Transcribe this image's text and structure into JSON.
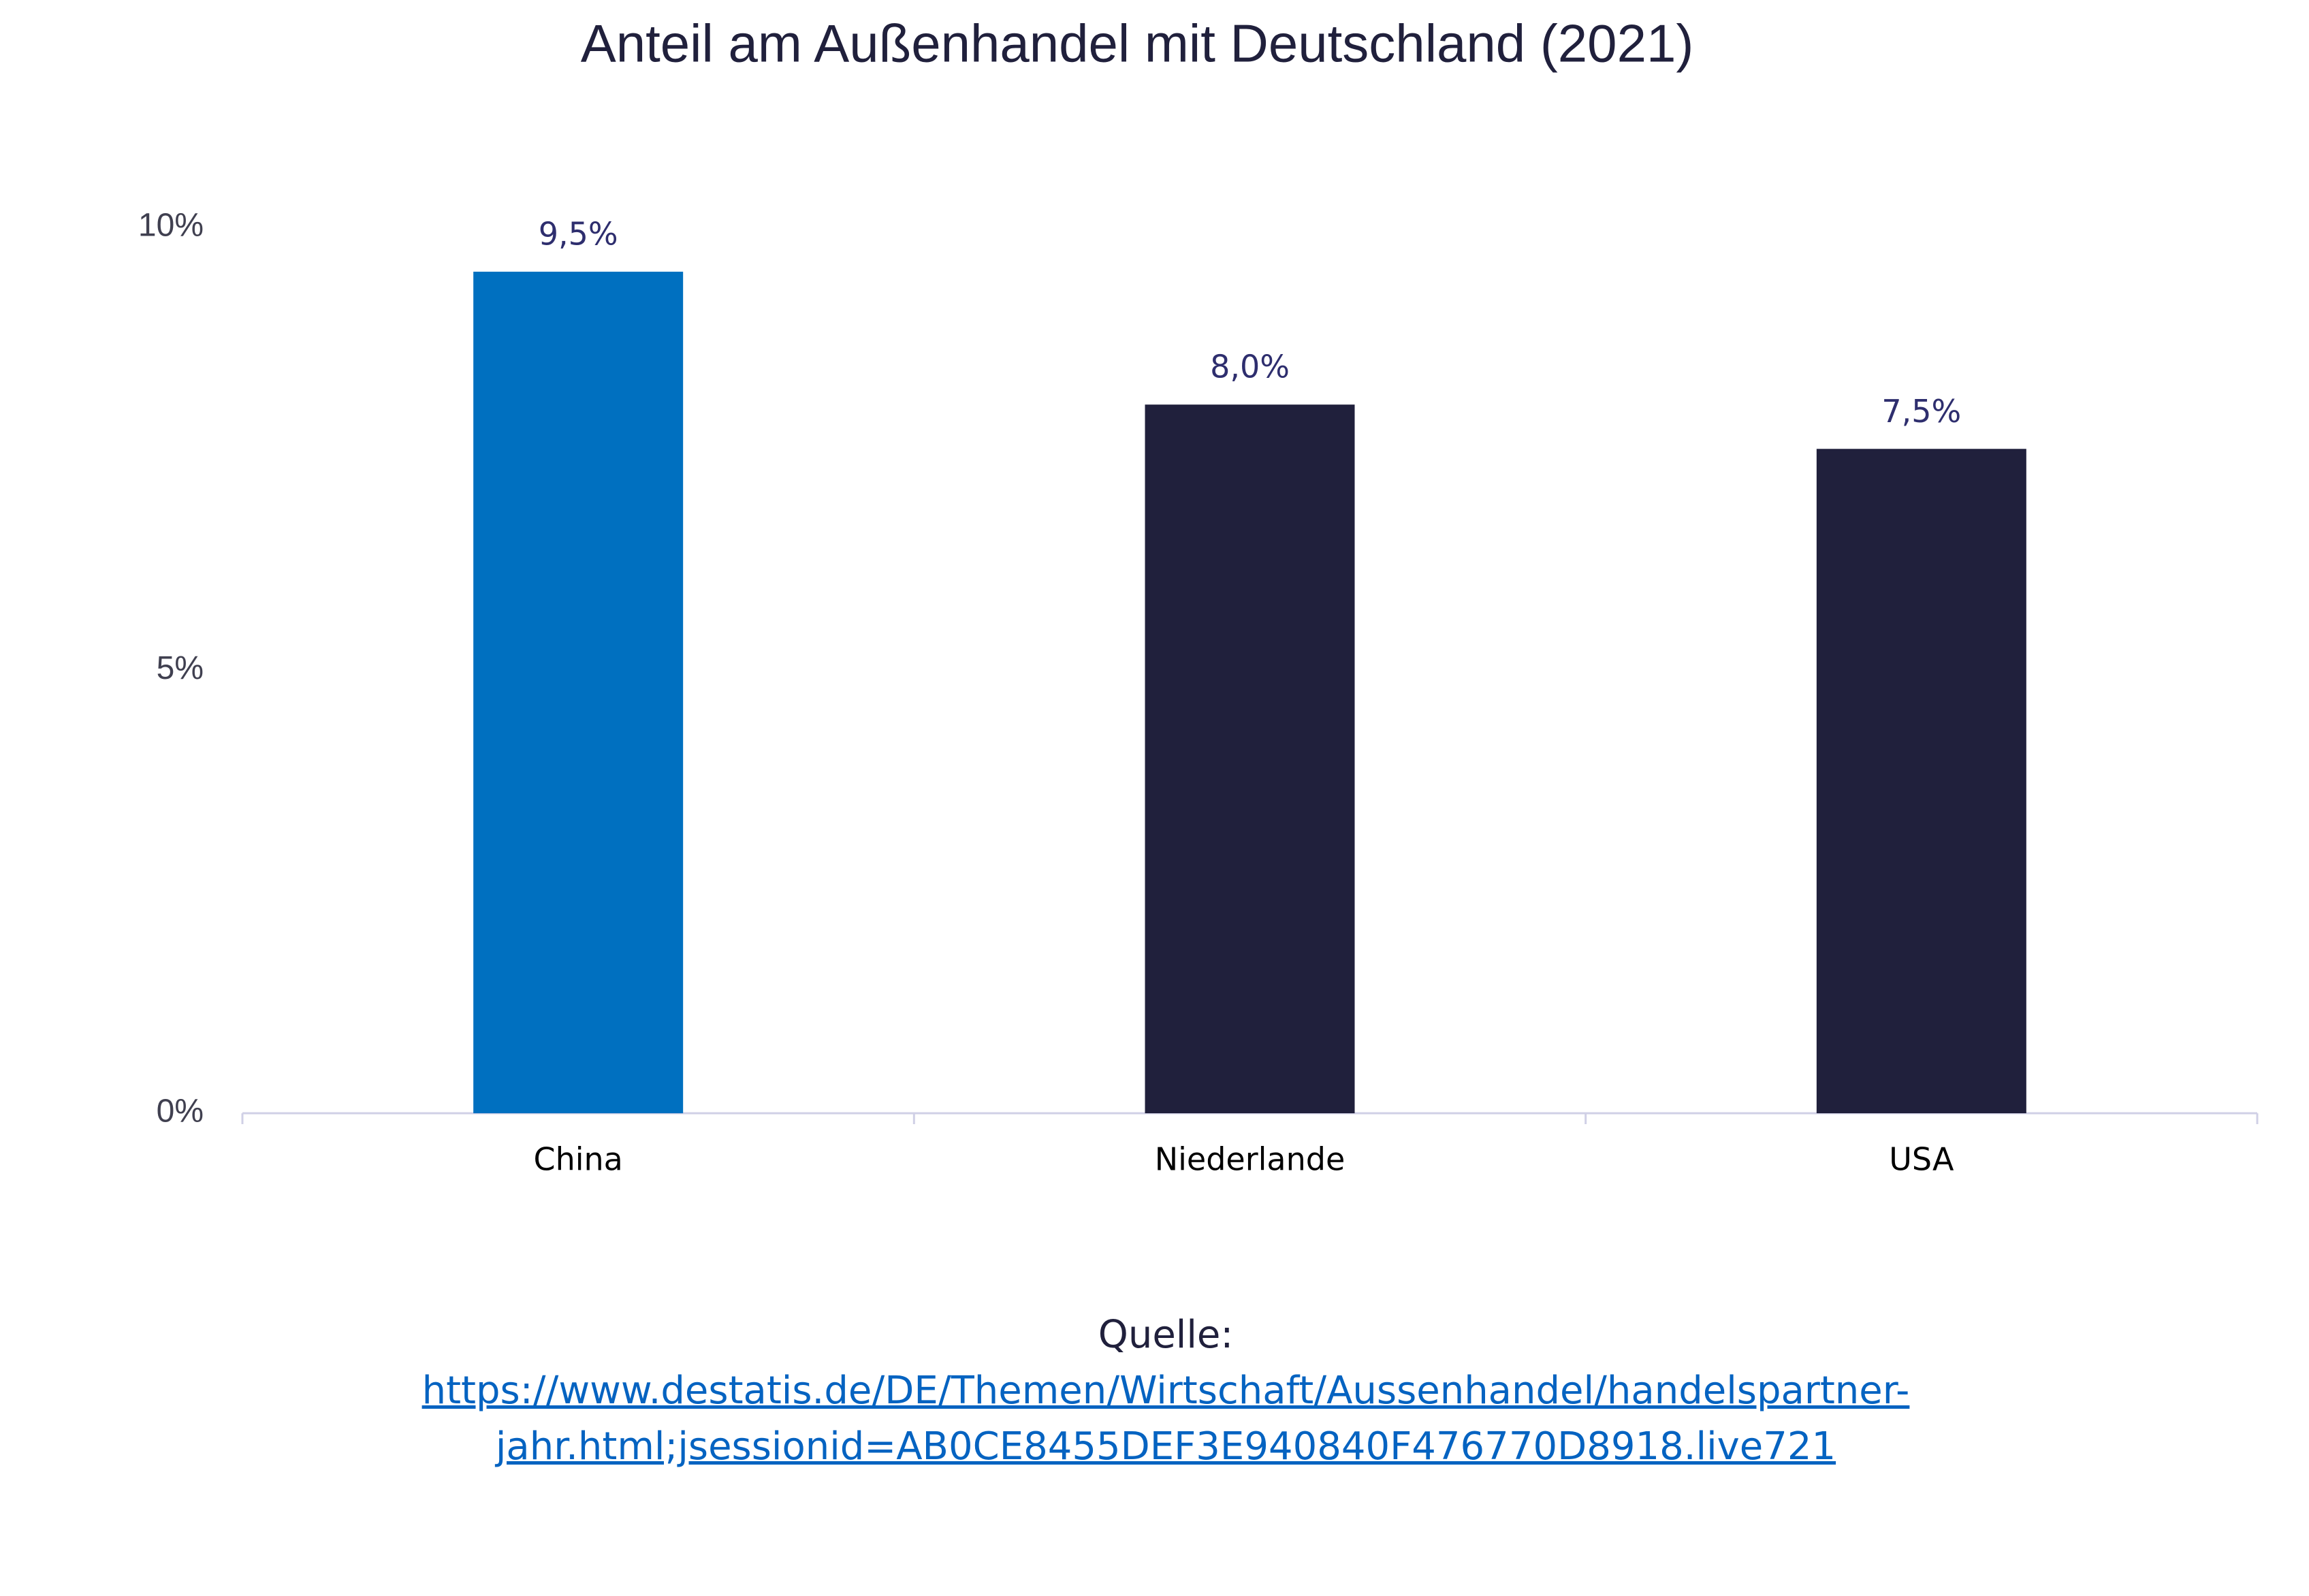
{
  "chart_data": {
    "type": "bar",
    "title": "Anteil am Außenhandel mit Deutschland (2021)",
    "categories": [
      "China",
      "Niederlande",
      "USA"
    ],
    "values": [
      9.5,
      8.0,
      7.5
    ],
    "value_labels": [
      "9,5%",
      "8,0%",
      "7,5%"
    ],
    "colors": [
      "#0070c0",
      "#20203c",
      "#20203c"
    ],
    "ylim": [
      0,
      10
    ],
    "yticks": [
      {
        "value": 0,
        "label": "0%"
      },
      {
        "value": 5,
        "label": "5%"
      },
      {
        "value": 10,
        "label": "10%"
      }
    ],
    "grid": false
  },
  "source": {
    "label": "Quelle:",
    "url": "https://www.destatis.de/DE/Themen/Wirtschaft/Aussenhandel/handelspartner-jahr.html;jsessionid=AB0CE8455DEF3E940840F476770D8918.live721"
  }
}
